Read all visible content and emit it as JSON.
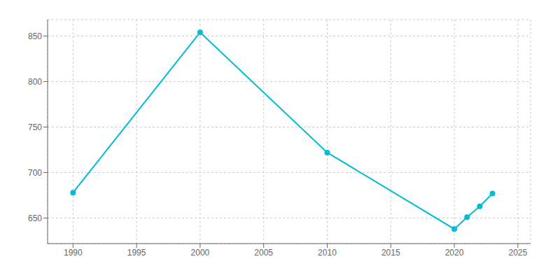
{
  "chart_data": {
    "type": "line",
    "x": [
      1990,
      2000,
      2010,
      2020,
      2021,
      2022,
      2023
    ],
    "values": [
      678,
      854,
      722,
      638,
      651,
      663,
      677
    ],
    "color": "#00BCD4",
    "marker": "circle",
    "xlim": [
      1988,
      2026
    ],
    "xticks": [
      1990,
      1995,
      2000,
      2005,
      2010,
      2015,
      2020,
      2025
    ],
    "ylim": [
      622,
      868
    ],
    "yticks": [
      650,
      700,
      750,
      800,
      850
    ],
    "grid": true
  }
}
